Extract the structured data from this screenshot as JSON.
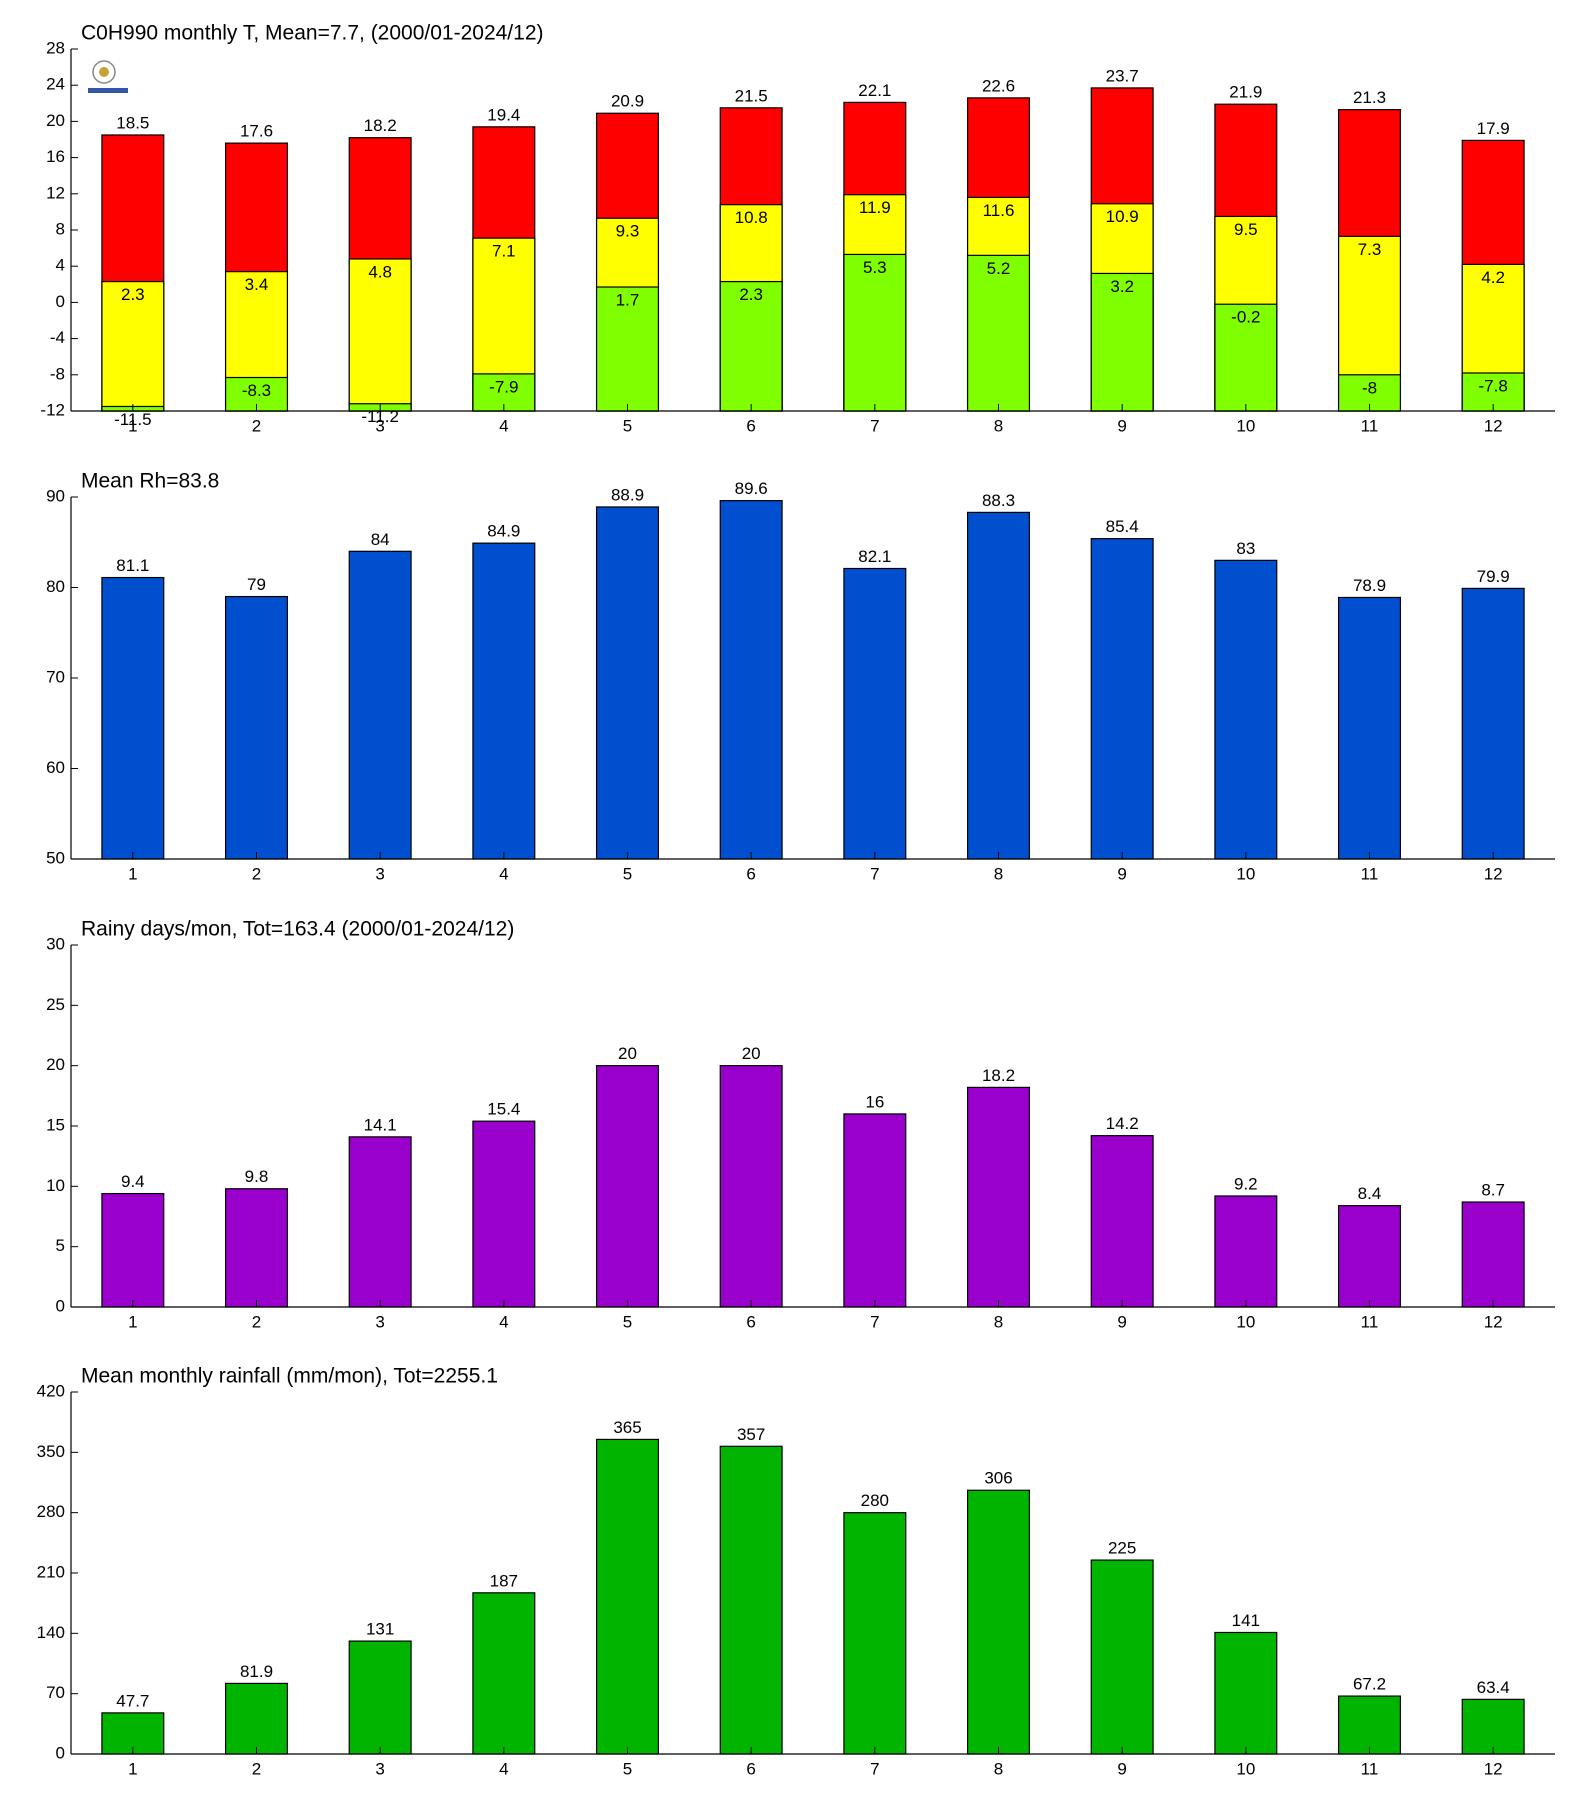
{
  "chart_data": [
    {
      "type": "bar",
      "title": "C0H990 monthly T, Mean=7.7, (2000/01-2024/12)",
      "categories": [
        1,
        2,
        3,
        4,
        5,
        6,
        7,
        8,
        9,
        10,
        11,
        12
      ],
      "series": [
        {
          "color": "#ff0000",
          "values": [
            18.5,
            17.6,
            18.2,
            19.4,
            20.9,
            21.5,
            22.1,
            22.6,
            23.7,
            21.9,
            21.3,
            17.9
          ]
        },
        {
          "color": "#ffff00",
          "values": [
            2.3,
            3.4,
            4.8,
            7.1,
            9.3,
            10.8,
            11.9,
            11.6,
            10.9,
            9.5,
            7.3,
            4.2
          ]
        },
        {
          "color": "#80ff00",
          "values": [
            -11.5,
            -8.3,
            -11.2,
            -7.9,
            1.7,
            2.3,
            5.3,
            5.2,
            3.2,
            -0.2,
            -8,
            -7.8
          ]
        }
      ],
      "ylim": [
        -12,
        28
      ],
      "yticks": [
        -12,
        -8,
        -4,
        0,
        4,
        8,
        12,
        16,
        20,
        24,
        28
      ]
    },
    {
      "type": "bar",
      "title": "Mean Rh=83.8",
      "categories": [
        1,
        2,
        3,
        4,
        5,
        6,
        7,
        8,
        9,
        10,
        11,
        12
      ],
      "series": [
        {
          "color": "#004fcf",
          "values": [
            81.1,
            79,
            84,
            84.9,
            88.9,
            89.6,
            82.1,
            88.3,
            85.4,
            83,
            78.9,
            79.9
          ]
        }
      ],
      "ylim": [
        50,
        90
      ],
      "yticks": [
        50,
        60,
        70,
        80,
        90
      ]
    },
    {
      "type": "bar",
      "title": "Rainy days/mon, Tot=163.4 (2000/01-2024/12)",
      "categories": [
        1,
        2,
        3,
        4,
        5,
        6,
        7,
        8,
        9,
        10,
        11,
        12
      ],
      "series": [
        {
          "color": "#9900cc",
          "values": [
            9.4,
            9.8,
            14.1,
            15.4,
            20,
            20,
            16,
            18.2,
            14.2,
            9.2,
            8.4,
            8.7
          ]
        }
      ],
      "ylim": [
        0,
        30
      ],
      "yticks": [
        0,
        5,
        10,
        15,
        20,
        25,
        30
      ]
    },
    {
      "type": "bar",
      "title": "Mean monthly rainfall (mm/mon), Tot=2255.1",
      "categories": [
        1,
        2,
        3,
        4,
        5,
        6,
        7,
        8,
        9,
        10,
        11,
        12
      ],
      "series": [
        {
          "color": "#00b400",
          "values": [
            47.7,
            81.9,
            131,
            187,
            365,
            357,
            280,
            306,
            225,
            141,
            67.2,
            63.4
          ]
        }
      ],
      "ylim": [
        0,
        420
      ],
      "yticks": [
        0,
        70,
        140,
        210,
        280,
        350,
        420
      ]
    }
  ]
}
